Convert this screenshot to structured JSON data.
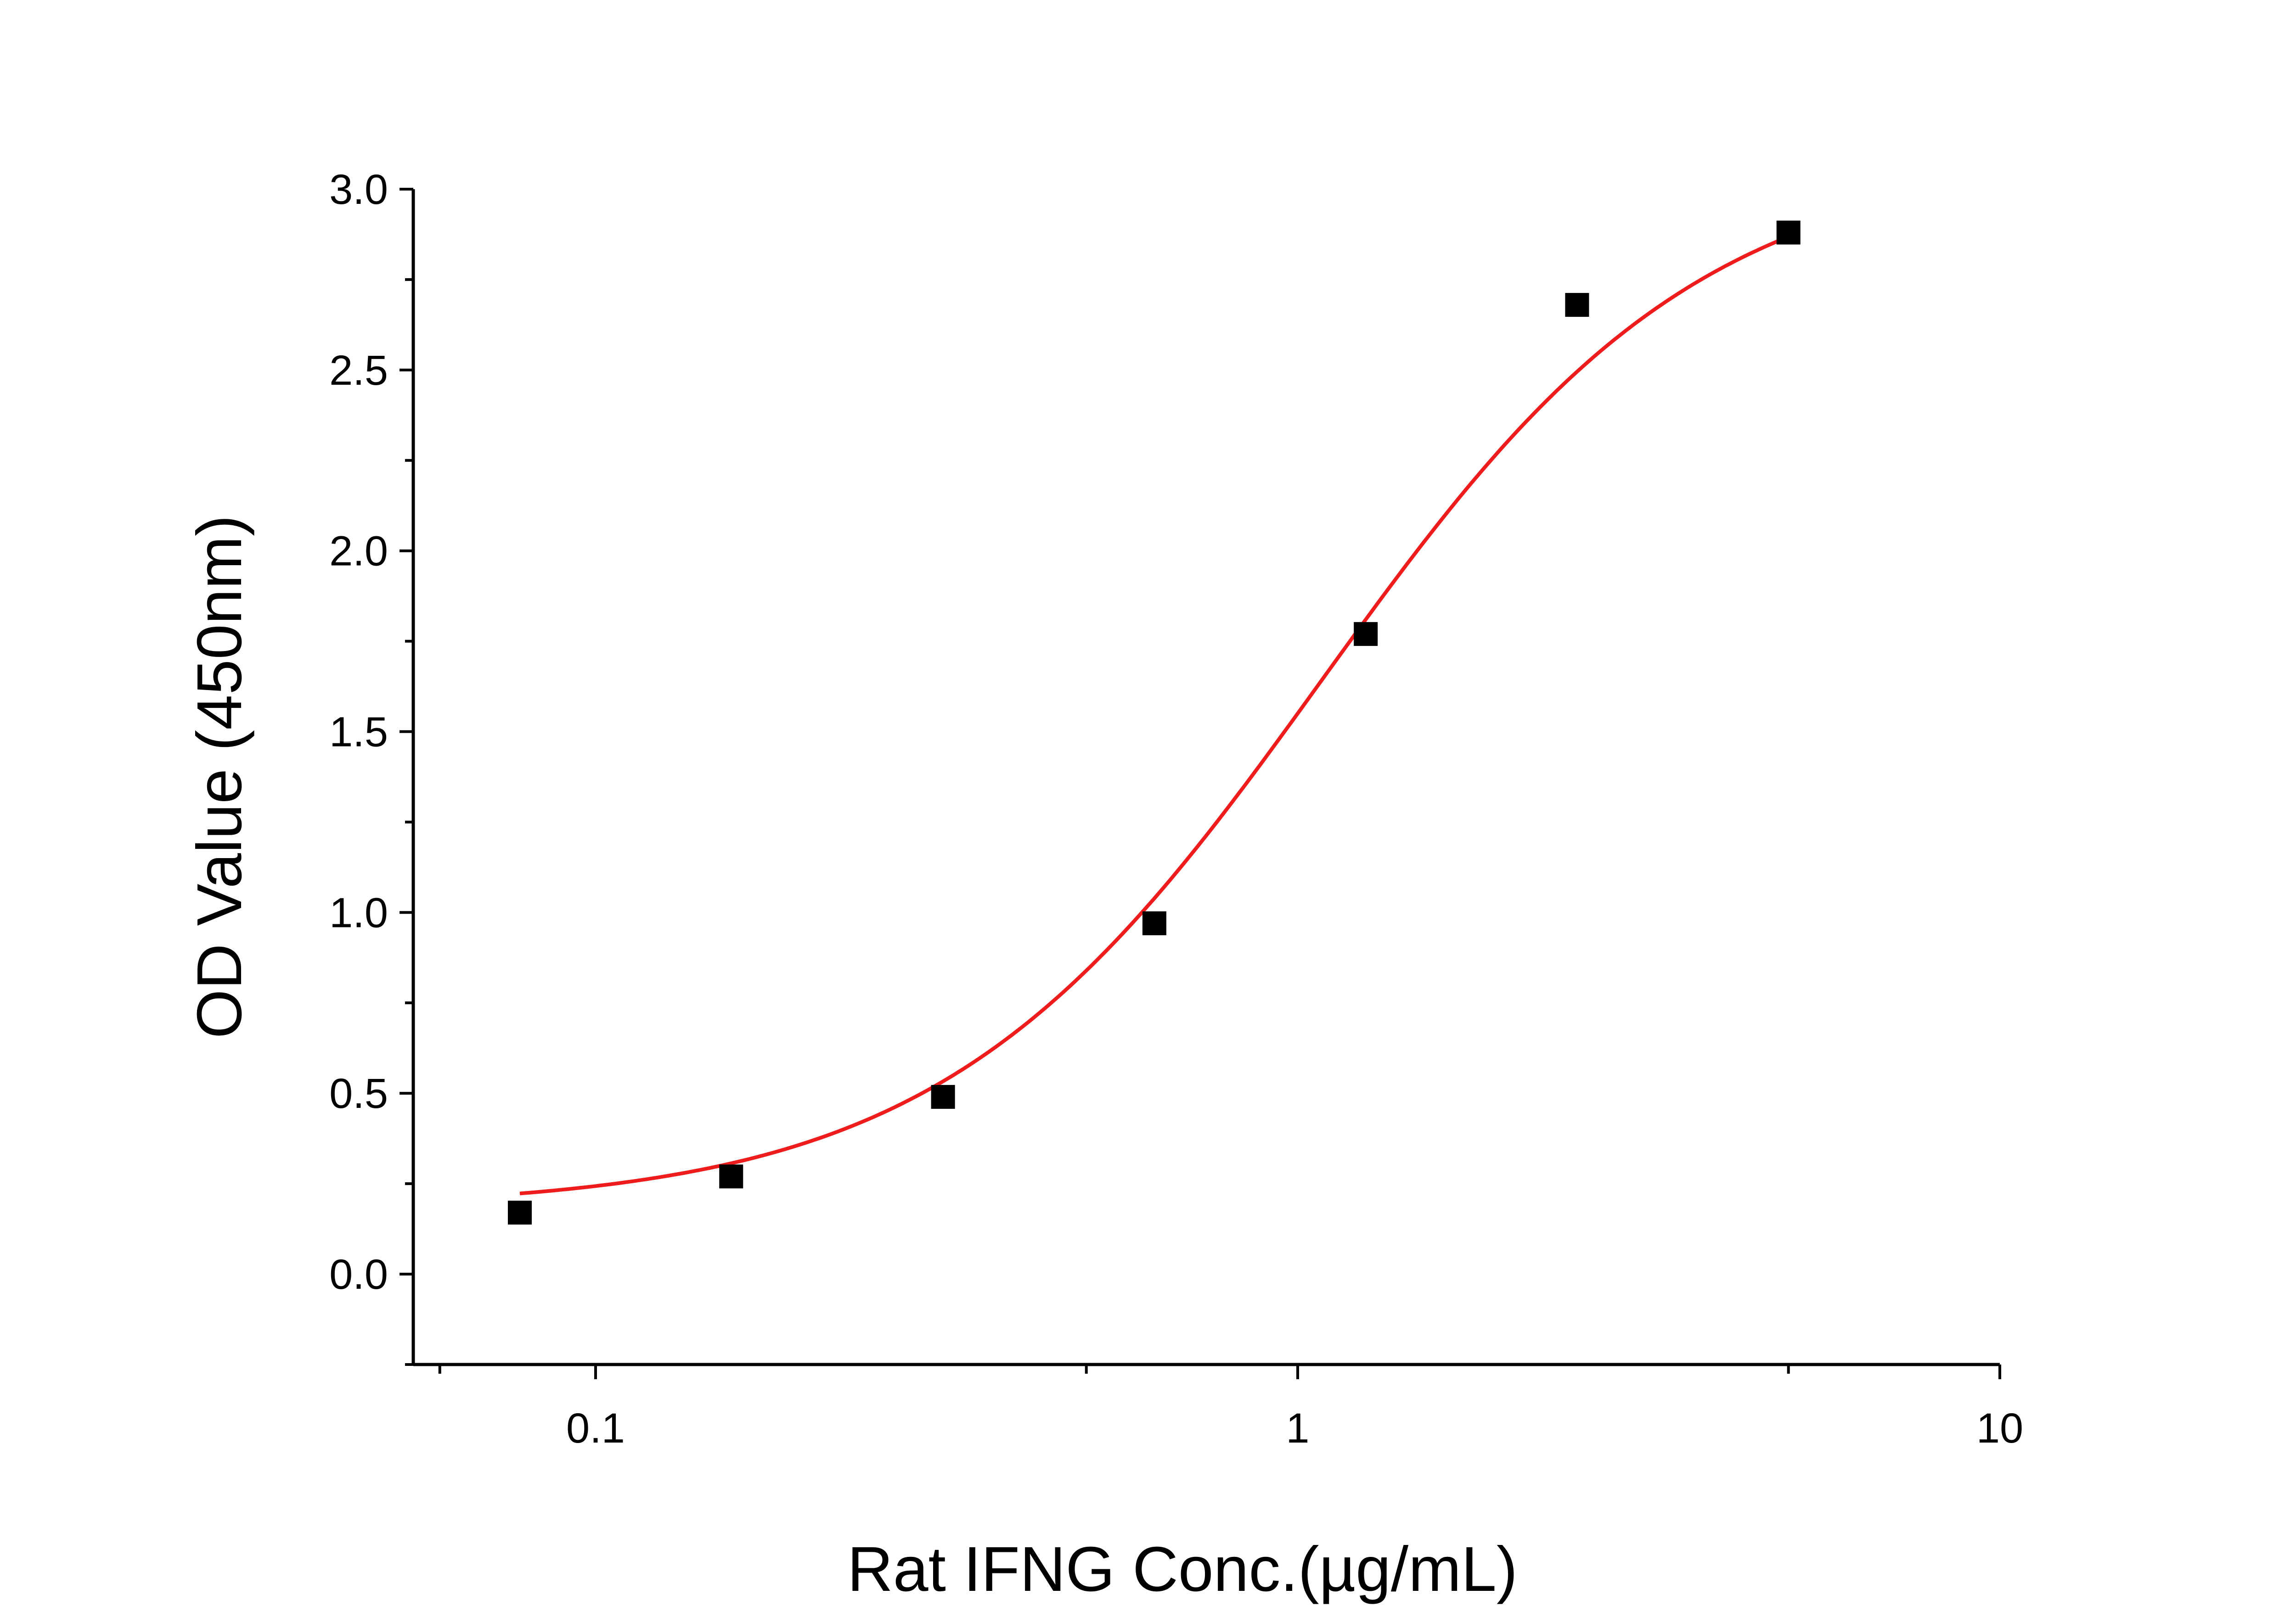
{
  "chart_data": {
    "type": "scatter",
    "title": "",
    "xlabel": "Rat IFNG Conc.(µg/mL)",
    "ylabel": "OD Value (450nm)",
    "xscale": "log",
    "xlim": [
      0.055,
      10
    ],
    "ylim": [
      -0.25,
      3.0
    ],
    "x_ticks": [
      0.1,
      1,
      10
    ],
    "x_tick_labels": [
      "0.1",
      "1",
      "10"
    ],
    "x_minor_ticks": [
      0.06,
      0.5,
      5
    ],
    "y_ticks": [
      0.0,
      0.5,
      1.0,
      1.5,
      2.0,
      2.5,
      3.0
    ],
    "y_tick_labels": [
      "0.0",
      "0.5",
      "1.0",
      "1.5",
      "2.0",
      "2.5",
      "3.0"
    ],
    "y_minor_ticks": [
      -0.25,
      0.25,
      0.75,
      1.25,
      1.75,
      2.25,
      2.75
    ],
    "grid": false,
    "legend": "none",
    "series": [
      {
        "x": [
          0.078,
          0.156,
          0.3125,
          0.625,
          1.25,
          2.5,
          5.0
        ],
        "y": [
          0.17,
          0.27,
          0.49,
          0.97,
          1.77,
          2.68,
          2.88
        ],
        "marker": "square",
        "color": "#000000"
      }
    ],
    "fit_curve": {
      "model": "4PL",
      "bottom": 0.18,
      "top": 3.1,
      "ec50": 1.08,
      "hill": 1.6,
      "x_range": [
        0.078,
        5.0
      ],
      "color": "#ee1c1c"
    }
  }
}
